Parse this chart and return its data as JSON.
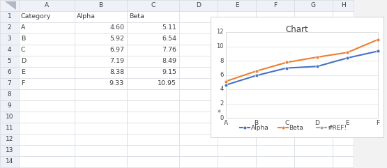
{
  "categories": [
    "A",
    "B",
    "C",
    "D",
    "E",
    "F"
  ],
  "alpha_values": [
    4.6,
    5.92,
    6.97,
    7.19,
    8.38,
    9.33
  ],
  "beta_values": [
    5.11,
    6.54,
    7.76,
    8.49,
    9.15,
    10.95
  ],
  "ref_point": [
    0,
    1.0
  ],
  "title": "Chart",
  "alpha_color": "#4472C4",
  "beta_color": "#ED7D31",
  "ref_color": "#A5A5A5",
  "ylim": [
    0,
    12
  ],
  "yticks": [
    0,
    2,
    4,
    6,
    8,
    10,
    12
  ],
  "table_headers": [
    "Category",
    "Alpha",
    "Beta"
  ],
  "table_data": [
    [
      "A",
      "4.60",
      "5.11"
    ],
    [
      "B",
      "5.92",
      "6.54"
    ],
    [
      "C",
      "6.97",
      "7.76"
    ],
    [
      "D",
      "7.19",
      "8.49"
    ],
    [
      "E",
      "8.38",
      "9.15"
    ],
    [
      "F",
      "9.33",
      "10.95"
    ]
  ],
  "col_letters": [
    "A",
    "B",
    "C",
    "D"
  ],
  "row_numbers": [
    "1",
    "2",
    "3",
    "4",
    "5",
    "6",
    "7",
    "8",
    "9",
    "10",
    "11",
    "12",
    "13",
    "14"
  ],
  "spreadsheet_bg": "#FFFFFF",
  "col_header_bg": "#EEF2F8",
  "row_header_bg": "#EEF2F8",
  "grid_color": "#D0D7DE",
  "legend_labels": [
    "Alpha",
    "Beta",
    "#REF!"
  ],
  "fig_bg": "#F2F2F2"
}
